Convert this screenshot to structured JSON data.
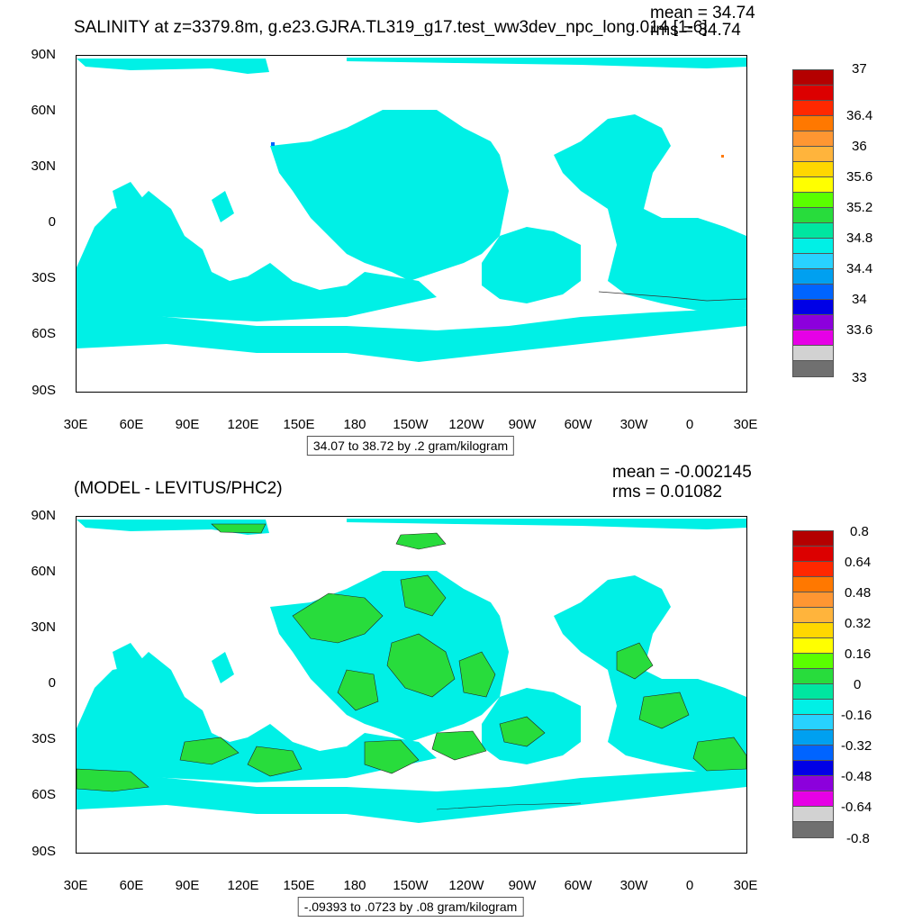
{
  "top": {
    "title": "SALINITY at z=3379.8m, g.e23.GJRA.TL319_g17.test_ww3dev_npc_long.014 [1-6]",
    "mean": "mean = 34.74",
    "rms": "rms = 34.74",
    "range_note": "34.07 to 38.72 by .2 gram/kilogram",
    "colorbar_labels": [
      "37",
      "36.4",
      "36",
      "35.6",
      "35.2",
      "34.8",
      "34.4",
      "34",
      "33.6",
      "33"
    ],
    "colorbar_colors": [
      "#b40000",
      "#dc0000",
      "#ff2800",
      "#ff7800",
      "#ff9632",
      "#ffb43c",
      "#ffd700",
      "#ffff00",
      "#5aff00",
      "#28dc3c",
      "#00e6a0",
      "#00f0e6",
      "#28d2ff",
      "#00a0f0",
      "#0064ff",
      "#0000e6",
      "#8c00dc",
      "#e600e6",
      "#d2d2d2",
      "#707070"
    ],
    "ocean_color": "#00f0e6"
  },
  "bottom": {
    "title": "(MODEL - LEVITUS/PHC2)",
    "mean": "mean = -0.002145",
    "rms": "rms = 0.01082",
    "range_note": "-.09393 to .0723 by .08 gram/kilogram",
    "colorbar_labels": [
      "0.8",
      "0.64",
      "0.48",
      "0.32",
      "0.16",
      "0",
      "-0.16",
      "-0.32",
      "-0.48",
      "-0.64",
      "-0.8"
    ],
    "colorbar_colors": [
      "#b40000",
      "#dc0000",
      "#ff2800",
      "#ff7800",
      "#ff9632",
      "#ffb43c",
      "#ffd700",
      "#ffff00",
      "#5aff00",
      "#28dc3c",
      "#00e6a0",
      "#00f0e6",
      "#28d2ff",
      "#00a0f0",
      "#0064ff",
      "#0000e6",
      "#8c00dc",
      "#e600e6",
      "#d2d2d2",
      "#707070"
    ],
    "ocean_color": "#00f0e6",
    "positive_color": "#28dc3c"
  },
  "axes": {
    "lat_labels": [
      "90N",
      "60N",
      "30N",
      "0",
      "30S",
      "60S",
      "90S"
    ],
    "lon_labels": [
      "30E",
      "60E",
      "90E",
      "120E",
      "150E",
      "180",
      "150W",
      "120W",
      "90W",
      "60W",
      "30W",
      "0",
      "30E"
    ]
  }
}
